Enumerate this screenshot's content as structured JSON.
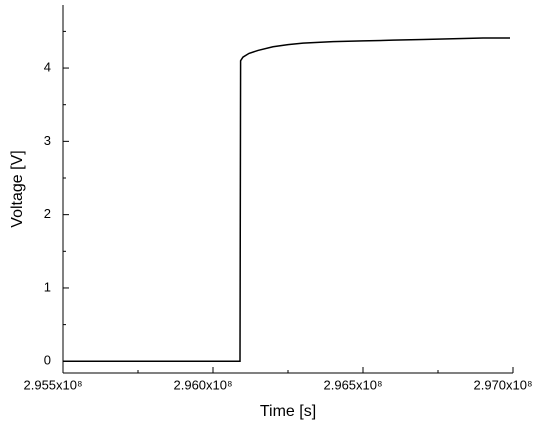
{
  "chart_data": {
    "type": "line",
    "x_label": "Time [s]",
    "y_label": "Voltage [V]",
    "xlim": [
      295500000,
      297000000
    ],
    "xticks": [
      {
        "value": 295500000,
        "label": "2.955x10⁸"
      },
      {
        "value": 296000000,
        "label": "2.960x10⁸"
      },
      {
        "value": 296500000,
        "label": "2.965x10⁸"
      },
      {
        "value": 297000000,
        "label": "2.970x10⁸"
      }
    ],
    "xminorticks": [
      295750000,
      296250000,
      296750000
    ],
    "ylim": [
      -0.16,
      4.86
    ],
    "yticks": [
      0,
      1,
      2,
      3,
      4
    ],
    "yminorticks": [
      0.5,
      1.5,
      2.5,
      3.5,
      4.5
    ],
    "series": [
      {
        "color": "#000000",
        "x": [
          295500000,
          296085000,
          296090000,
          296092000,
          296100000,
          296120000,
          296150000,
          296200000,
          296250000,
          296300000,
          296400000,
          296500000,
          296600000,
          296700000,
          296800000,
          296900000,
          296990000
        ],
        "values": [
          0,
          0,
          0,
          4.1,
          4.15,
          4.2,
          4.24,
          4.29,
          4.32,
          4.34,
          4.36,
          4.37,
          4.38,
          4.39,
          4.4,
          4.41,
          4.41
        ]
      }
    ]
  }
}
